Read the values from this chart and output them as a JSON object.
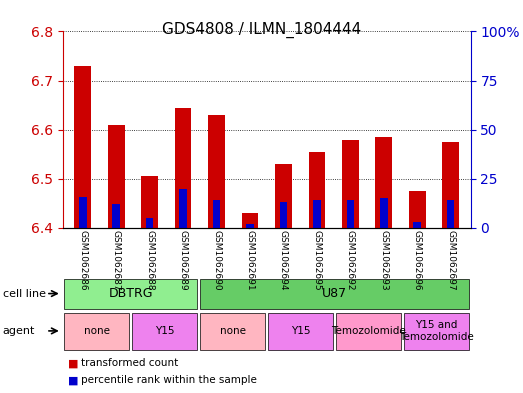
{
  "title": "GDS4808 / ILMN_1804444",
  "samples": [
    "GSM1062686",
    "GSM1062687",
    "GSM1062688",
    "GSM1062689",
    "GSM1062690",
    "GSM1062691",
    "GSM1062694",
    "GSM1062695",
    "GSM1062692",
    "GSM1062693",
    "GSM1062696",
    "GSM1062697"
  ],
  "transformed_count": [
    6.73,
    6.61,
    6.505,
    6.645,
    6.63,
    6.43,
    6.53,
    6.555,
    6.58,
    6.585,
    6.475,
    6.575
  ],
  "percentile_rank": [
    16,
    12,
    5,
    20,
    14,
    2,
    13,
    14,
    14,
    15,
    3,
    14
  ],
  "ylim_left": [
    6.4,
    6.8
  ],
  "ylim_right": [
    0,
    100
  ],
  "yticks_left": [
    6.4,
    6.5,
    6.6,
    6.7,
    6.8
  ],
  "yticks_right": [
    0,
    25,
    50,
    75,
    100
  ],
  "bar_width": 0.5,
  "cell_line_groups": [
    {
      "label": "DBTRG",
      "start": 0,
      "end": 3,
      "color": "#90EE90"
    },
    {
      "label": "U87",
      "start": 4,
      "end": 11,
      "color": "#66CC66"
    }
  ],
  "agent_groups": [
    {
      "label": "none",
      "start": 0,
      "end": 1,
      "color": "#FFB6C1"
    },
    {
      "label": "Y15",
      "start": 2,
      "end": 3,
      "color": "#EE82EE"
    },
    {
      "label": "none",
      "start": 4,
      "end": 5,
      "color": "#FFB6C1"
    },
    {
      "label": "Y15",
      "start": 6,
      "end": 7,
      "color": "#EE82EE"
    },
    {
      "label": "Temozolomide",
      "start": 8,
      "end": 9,
      "color": "#FF99CC"
    },
    {
      "label": "Y15 and\nTemozolomide",
      "start": 10,
      "end": 11,
      "color": "#EE82EE"
    }
  ],
  "red_color": "#CC0000",
  "blue_color": "#0000CC",
  "axis_label_color_left": "#CC0000",
  "axis_label_color_right": "#0000CC",
  "base_value": 6.4
}
